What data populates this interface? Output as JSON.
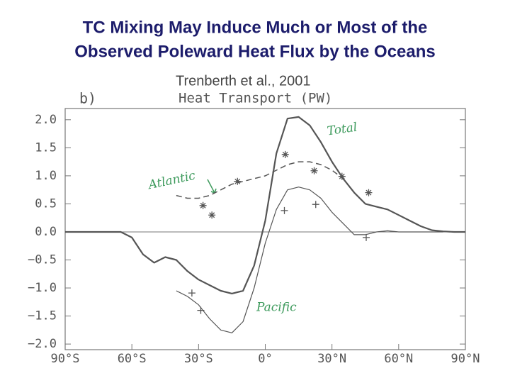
{
  "chart_data": {
    "type": "line",
    "title": "TC Mixing May Induce Much or Most of the Observed Poleward Heat Flux by the Oceans",
    "subtitle": "Trenberth et al., 2001",
    "panel_label": "b)",
    "ylabel": "Heat Transport (PW)",
    "x": [
      -90,
      -85,
      -80,
      -75,
      -70,
      -65,
      -60,
      -55,
      -50,
      -45,
      -40,
      -35,
      -30,
      -25,
      -20,
      -15,
      -10,
      -5,
      0,
      5,
      10,
      15,
      20,
      25,
      30,
      35,
      40,
      45,
      50,
      55,
      60,
      65,
      70,
      75,
      80,
      85,
      90
    ],
    "series": [
      {
        "name": "Total",
        "color": "#555555",
        "width": 2.2,
        "dash": false,
        "values": [
          0,
          0,
          0,
          0,
          0,
          0,
          -0.1,
          -0.4,
          -0.55,
          -0.45,
          -0.5,
          -0.7,
          -0.85,
          -0.95,
          -1.05,
          -1.1,
          -1.05,
          -0.6,
          0.2,
          1.4,
          2.02,
          2.05,
          1.9,
          1.6,
          1.25,
          0.95,
          0.7,
          0.5,
          0.45,
          0.4,
          0.3,
          0.2,
          0.1,
          0.03,
          0.01,
          0,
          0
        ]
      },
      {
        "name": "Atlantic",
        "color": "#555555",
        "width": 1.5,
        "dash": true,
        "values": [
          null,
          null,
          null,
          null,
          null,
          null,
          null,
          null,
          null,
          null,
          0.65,
          0.6,
          0.6,
          0.65,
          0.75,
          0.85,
          0.9,
          0.95,
          1.0,
          1.1,
          1.2,
          1.25,
          1.25,
          1.2,
          1.1,
          0.95,
          0.7,
          0.5,
          0.45,
          0.4,
          0.3,
          0.2,
          null,
          null,
          null,
          null,
          null
        ]
      },
      {
        "name": "Pacific",
        "color": "#555555",
        "width": 1.2,
        "dash": false,
        "values": [
          null,
          null,
          null,
          null,
          null,
          null,
          null,
          null,
          null,
          null,
          -1.05,
          -1.15,
          -1.3,
          -1.55,
          -1.75,
          -1.8,
          -1.6,
          -1.0,
          -0.2,
          0.4,
          0.75,
          0.8,
          0.75,
          0.6,
          0.35,
          0.15,
          -0.05,
          -0.05,
          0,
          0.02,
          0,
          0,
          0,
          0,
          0,
          null,
          null
        ]
      }
    ],
    "observations": [
      {
        "marker": "asterisk",
        "x": [
          -28,
          -24,
          -12.5,
          9,
          22,
          34.5,
          46.5
        ],
        "y": [
          0.47,
          0.3,
          0.9,
          1.38,
          1.09,
          0.99,
          0.7
        ]
      },
      {
        "marker": "plus",
        "x": [
          -33,
          -29,
          8.6,
          22.7,
          45.4
        ],
        "y": [
          -1.09,
          -1.4,
          0.38,
          0.49,
          -0.1
        ]
      }
    ],
    "annotation_color": "#3d9a5c",
    "xlim": [
      -90,
      90
    ],
    "ylim": [
      -2.1,
      2.2
    ],
    "xticks": [
      {
        "value": -90,
        "label": "90°S"
      },
      {
        "value": -60,
        "label": "60°S"
      },
      {
        "value": -30,
        "label": "30°S"
      },
      {
        "value": 0,
        "label": "0°"
      },
      {
        "value": 30,
        "label": "30°N"
      },
      {
        "value": 60,
        "label": "60°N"
      },
      {
        "value": 90,
        "label": "90°N"
      }
    ],
    "yticks": [
      {
        "value": -2,
        "label": "−2.0"
      },
      {
        "value": -1.5,
        "label": "−1.5"
      },
      {
        "value": -1,
        "label": "−1.0"
      },
      {
        "value": -0.5,
        "label": "−0.5"
      },
      {
        "value": 0,
        "label": "0.0"
      },
      {
        "value": 0.5,
        "label": "0.5"
      },
      {
        "value": 1,
        "label": "1.0"
      },
      {
        "value": 1.5,
        "label": "1.5"
      },
      {
        "value": 2,
        "label": "2.0"
      }
    ],
    "grid": false
  }
}
